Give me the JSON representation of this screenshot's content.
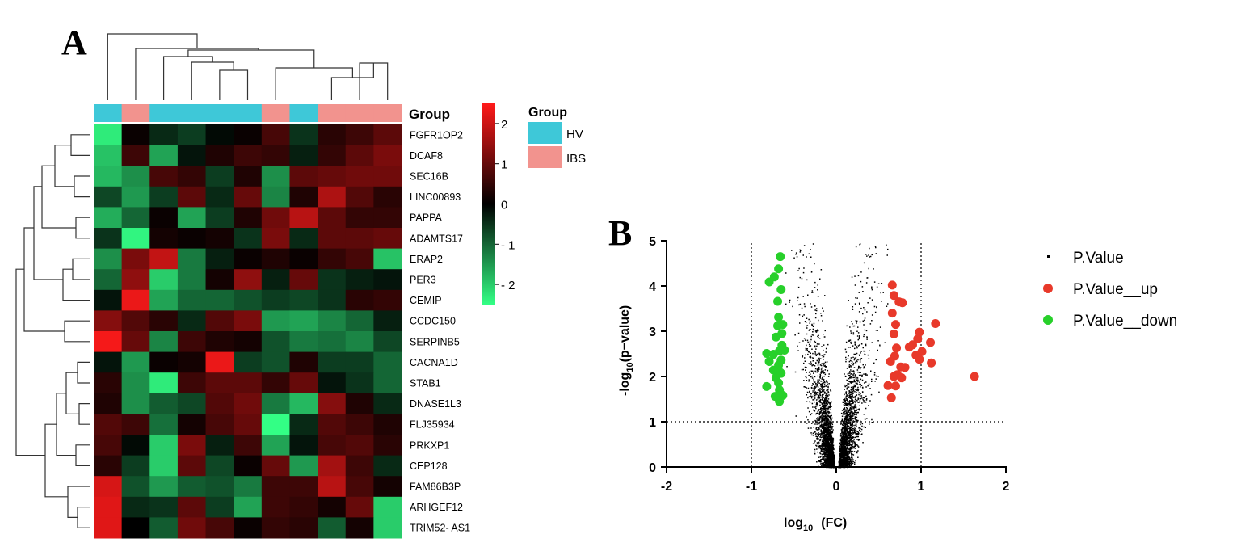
{
  "chart_data": [
    {
      "panel": "A",
      "type": "heatmap",
      "column_annotation_title": "Group",
      "legend_title": "Group",
      "legend": [
        {
          "label": "HV",
          "color": "#3ec8d8"
        },
        {
          "label": "IBS",
          "color": "#f2938e"
        }
      ],
      "column_groups": [
        "HV",
        "IBS",
        "HV",
        "HV",
        "HV",
        "HV",
        "IBS",
        "HV",
        "IBS",
        "IBS",
        "IBS"
      ],
      "colorbar_ticks": [
        "2",
        "1",
        "0",
        "- 1",
        "- 2"
      ],
      "colorbar_tick_values": [
        2,
        1,
        0,
        -1,
        -2
      ],
      "colorbar_range": [
        -2.5,
        2.5
      ],
      "rows": [
        "FGFR1OP2",
        "DCAF8",
        "SEC16B",
        "LINC00893",
        "PAPPA",
        "ADAMTS17",
        "ERAP2",
        "PER3",
        "CEMIP",
        "CCDC150",
        "SERPINB5",
        "CACNA1D",
        "STAB1",
        "DNASE1L3",
        "FLJ35934",
        "PRKXP1",
        "CEP128",
        "FAM86B3P",
        "ARHGEF12",
        "TRIM52- AS1"
      ],
      "values": [
        [
          -2.3,
          0.1,
          -0.4,
          -0.6,
          -0.1,
          0.1,
          0.7,
          -0.5,
          0.4,
          0.6,
          0.9
        ],
        [
          -1.9,
          0.6,
          -1.6,
          -0.2,
          0.3,
          0.6,
          0.5,
          -0.3,
          0.5,
          0.9,
          1.2
        ],
        [
          -1.8,
          -1.4,
          0.7,
          0.5,
          -0.6,
          0.3,
          -1.4,
          0.9,
          1.0,
          1.1,
          1.1
        ],
        [
          -0.7,
          -1.5,
          -0.6,
          0.9,
          -0.4,
          1.0,
          -1.3,
          0.3,
          1.7,
          0.8,
          0.4
        ],
        [
          -1.7,
          -1.0,
          0.1,
          -1.6,
          -0.6,
          0.3,
          1.1,
          1.8,
          0.9,
          0.5,
          0.5
        ],
        [
          -0.5,
          -2.4,
          0.2,
          0.1,
          0.2,
          -0.5,
          1.2,
          -0.4,
          0.9,
          0.9,
          1.0
        ],
        [
          -1.4,
          1.2,
          1.9,
          -1.2,
          -0.3,
          0.1,
          0.3,
          0.1,
          0.5,
          0.7,
          -1.9
        ],
        [
          -1.0,
          1.4,
          -2.0,
          -1.2,
          0.2,
          1.4,
          -0.3,
          1.0,
          -0.5,
          -0.3,
          -0.2
        ],
        [
          -0.2,
          2.3,
          -1.6,
          -1.0,
          -1.0,
          -0.8,
          -0.6,
          -0.7,
          -0.5,
          0.4,
          0.5
        ],
        [
          1.3,
          0.8,
          0.4,
          -0.4,
          0.8,
          1.2,
          -1.5,
          -1.6,
          -1.3,
          -1.0,
          -0.3
        ],
        [
          2.4,
          1.0,
          -1.3,
          0.6,
          0.3,
          0.2,
          -0.8,
          -1.2,
          -1.1,
          -1.3,
          -0.7
        ],
        [
          -0.2,
          -1.5,
          0.1,
          0.2,
          2.3,
          -0.6,
          -0.8,
          0.3,
          -0.6,
          -0.6,
          -1.0
        ],
        [
          0.4,
          -1.4,
          -2.3,
          0.6,
          0.9,
          0.9,
          0.5,
          1.0,
          -0.2,
          -0.5,
          -1.0
        ],
        [
          0.3,
          -1.4,
          -0.9,
          -0.7,
          0.8,
          1.1,
          -1.2,
          -1.8,
          1.3,
          0.3,
          -0.4
        ],
        [
          0.8,
          0.6,
          -1.1,
          0.2,
          0.7,
          1.0,
          -2.5,
          -0.4,
          0.8,
          0.6,
          0.3
        ],
        [
          0.7,
          -0.1,
          -2.0,
          1.2,
          -0.3,
          0.6,
          -1.6,
          -0.2,
          0.7,
          0.8,
          0.4
        ],
        [
          0.4,
          -0.6,
          -2.0,
          0.9,
          -0.7,
          0.1,
          1.0,
          -1.5,
          1.6,
          0.6,
          -0.4
        ],
        [
          2.1,
          -0.8,
          -1.5,
          -0.9,
          -0.8,
          -1.2,
          0.6,
          0.6,
          1.8,
          0.7,
          0.2
        ],
        [
          2.2,
          -0.4,
          -0.5,
          0.9,
          -0.6,
          -1.6,
          0.6,
          0.5,
          0.2,
          1.0,
          -2.0
        ],
        [
          2.2,
          0.0,
          -0.9,
          1.1,
          0.7,
          0.1,
          0.5,
          0.4,
          -0.9,
          0.2,
          -2.0
        ]
      ]
    },
    {
      "panel": "B",
      "type": "scatter",
      "xlabel_main": "log",
      "xlabel_sub": "10",
      "xlabel_rest": "(FC)",
      "ylabel_pre": "-log",
      "ylabel_sub": "10",
      "ylabel_rest": "(p−value)",
      "xlim": [
        -2,
        2
      ],
      "ylim": [
        0,
        5
      ],
      "xticks": [
        "-2",
        "-1",
        "0",
        "1",
        "2"
      ],
      "xtick_values": [
        -2,
        -1,
        0,
        1,
        2
      ],
      "yticks": [
        "0",
        "1",
        "2",
        "3",
        "4",
        "5"
      ],
      "ytick_values": [
        0,
        1,
        2,
        3,
        4,
        5
      ],
      "thresholds": {
        "x": [
          -1,
          1
        ],
        "y": 1
      },
      "series": [
        {
          "name": "P.Value",
          "color": "#000000",
          "description": "dense background cloud of thousands of non-significant genes (V-shaped volcano)"
        },
        {
          "name": "P.Value__up",
          "color": "#e8392a",
          "points": [
            [
              0.66,
              4.02
            ],
            [
              0.68,
              3.79
            ],
            [
              0.74,
              3.65
            ],
            [
              0.78,
              3.63
            ],
            [
              0.66,
              3.4
            ],
            [
              0.7,
              3.15
            ],
            [
              0.68,
              2.94
            ],
            [
              0.98,
              2.98
            ],
            [
              1.17,
              3.17
            ],
            [
              0.96,
              2.83
            ],
            [
              0.9,
              2.7
            ],
            [
              0.86,
              2.65
            ],
            [
              1.11,
              2.75
            ],
            [
              0.71,
              2.63
            ],
            [
              0.69,
              2.45
            ],
            [
              1.01,
              2.55
            ],
            [
              0.94,
              2.47
            ],
            [
              0.98,
              2.38
            ],
            [
              0.64,
              2.33
            ],
            [
              0.76,
              2.21
            ],
            [
              0.81,
              2.2
            ],
            [
              1.12,
              2.3
            ],
            [
              0.68,
              2.0
            ],
            [
              0.72,
              2.04
            ],
            [
              0.77,
              1.97
            ],
            [
              0.61,
              1.8
            ],
            [
              0.7,
              1.79
            ],
            [
              0.65,
              1.53
            ],
            [
              1.63,
              2.0
            ]
          ]
        },
        {
          "name": "P.Value__down",
          "color": "#27d02a",
          "points": [
            [
              -0.66,
              4.65
            ],
            [
              -0.68,
              4.38
            ],
            [
              -0.73,
              4.2
            ],
            [
              -0.79,
              4.09
            ],
            [
              -0.65,
              3.92
            ],
            [
              -0.69,
              3.66
            ],
            [
              -0.68,
              3.31
            ],
            [
              -0.63,
              3.15
            ],
            [
              -0.69,
              3.12
            ],
            [
              -0.64,
              2.95
            ],
            [
              -0.71,
              2.87
            ],
            [
              -0.64,
              2.69
            ],
            [
              -0.67,
              2.56
            ],
            [
              -0.74,
              2.49
            ],
            [
              -0.82,
              2.51
            ],
            [
              -0.65,
              2.36
            ],
            [
              -0.79,
              2.33
            ],
            [
              -0.68,
              2.25
            ],
            [
              -0.74,
              2.14
            ],
            [
              -0.66,
              2.09
            ],
            [
              -0.71,
              1.97
            ],
            [
              -0.68,
              1.86
            ],
            [
              -0.82,
              1.78
            ],
            [
              -0.67,
              1.7
            ],
            [
              -0.72,
              1.56
            ],
            [
              -0.67,
              1.45
            ],
            [
              -0.63,
              1.58
            ],
            [
              -0.65,
              2.07
            ],
            [
              -0.61,
              2.58
            ]
          ]
        }
      ]
    }
  ],
  "panel_labels": {
    "a": "A",
    "b": "B"
  }
}
